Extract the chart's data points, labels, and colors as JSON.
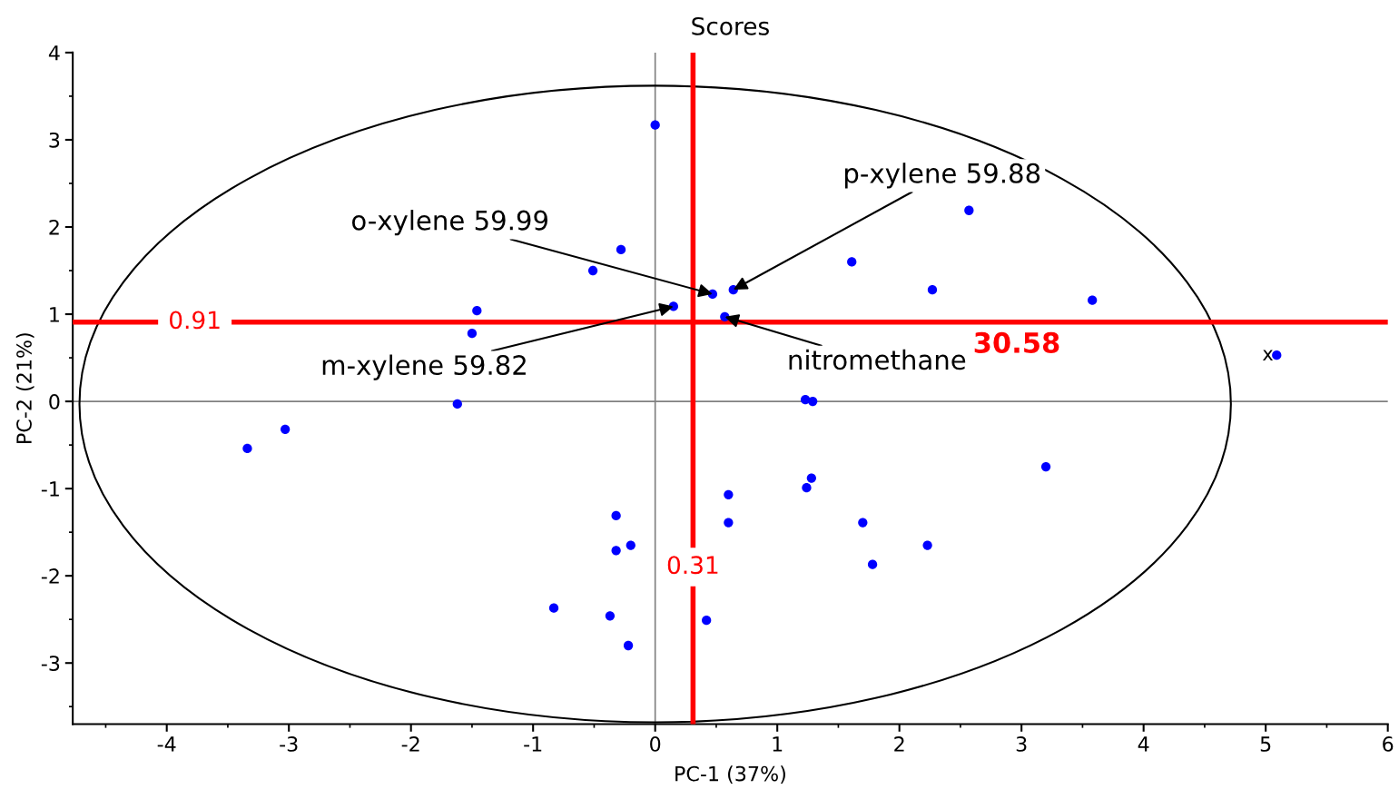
{
  "chart_data": {
    "type": "scatter",
    "title": "Scores",
    "xlabel": "PC-1 (37%)",
    "ylabel": "PC-2 (21%)",
    "xlim": [
      -4.77,
      6
    ],
    "ylim": [
      -3.7,
      4
    ],
    "xticks": [
      -4,
      -3,
      -2,
      -1,
      0,
      1,
      2,
      3,
      4,
      5,
      6
    ],
    "yticks": [
      -3,
      -2,
      -1,
      0,
      1,
      2,
      3,
      4
    ],
    "grid": false,
    "legend": false,
    "marker": "circle",
    "series": [
      {
        "color": "#0000ff",
        "x": [
          0.0,
          2.57,
          -0.28,
          -0.51,
          1.61,
          2.27,
          3.58,
          -1.46,
          -1.5,
          0.47,
          0.64,
          0.15,
          0.57,
          5.09,
          1.23,
          1.29,
          -1.62,
          -3.03,
          -3.34,
          3.2,
          1.28,
          1.24,
          0.6,
          0.6,
          -0.32,
          -0.32,
          -0.2,
          1.7,
          2.23,
          1.78,
          -0.83,
          -0.37,
          0.42,
          -0.22
        ],
        "values": [
          3.17,
          2.19,
          1.74,
          1.5,
          1.6,
          1.28,
          1.16,
          1.04,
          0.78,
          1.23,
          1.28,
          1.09,
          0.97,
          0.53,
          0.02,
          0.0,
          -0.03,
          -0.32,
          -0.54,
          -0.75,
          -0.88,
          -0.99,
          -1.07,
          -1.39,
          -1.31,
          -1.71,
          -1.65,
          -1.39,
          -1.65,
          -1.87,
          -2.37,
          -2.46,
          -2.51,
          -2.8
        ]
      }
    ],
    "ref_lines": [
      {
        "axis": "x",
        "value": 0,
        "color": "#808080"
      },
      {
        "axis": "y",
        "value": 0,
        "color": "#808080"
      },
      {
        "axis": "x",
        "value": 0.31,
        "label": "0.31",
        "color": "#ff0000"
      },
      {
        "axis": "y",
        "value": 0.91,
        "label": "0.91",
        "color": "#ff0000"
      }
    ],
    "annotations": [
      {
        "text": "o-xylene 59.99",
        "x": 0.47,
        "y": 1.23
      },
      {
        "text": "p-xylene 59.88",
        "x": 0.64,
        "y": 1.28
      },
      {
        "text": "m-xylene 59.82",
        "x": 0.15,
        "y": 1.09
      },
      {
        "text": "nitromethane 30.58",
        "x": 0.57,
        "y": 0.97
      },
      {
        "text": "x",
        "x": 5.09,
        "y": 0.53
      }
    ]
  }
}
